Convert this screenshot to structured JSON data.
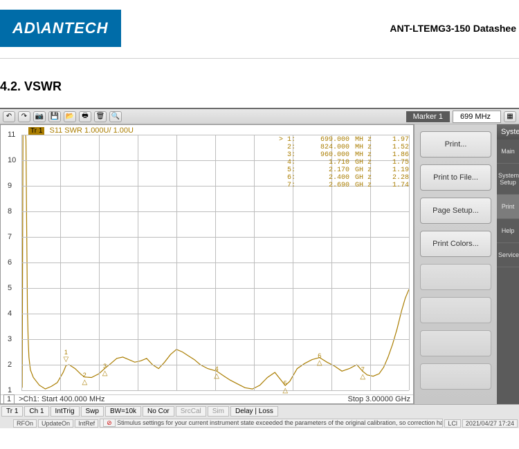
{
  "logo_text": "AD\\ANTECH",
  "doc_title": "ANT-LTEMG3-150  Datashee",
  "section_label": "4.2. VSWR",
  "toolbar": {
    "marker_label": "Marker 1",
    "marker_value": "699 MHz"
  },
  "chart": {
    "type": "line",
    "trace_badge": "Tr 1",
    "trace_label": "S11 SWR 1.000U/  1.00U",
    "trace_color": "#aa7d00",
    "grid_color": "#bdbdbd",
    "background_color": "#ffffff",
    "x_start_label": ">Ch1: Start  400.000 MHz",
    "x_stop_label": "Stop  3.00000 GHz",
    "ch_badge": "1",
    "x_min": 400,
    "x_max": 3000,
    "x_divs": 10,
    "y_min": 1,
    "y_max": 11,
    "y_ticks": [
      1,
      2,
      3,
      4,
      5,
      6,
      7,
      8,
      9,
      10,
      11
    ],
    "line_width": 1.2,
    "series": [
      [
        400,
        11
      ],
      [
        405,
        1.1
      ],
      [
        410,
        11
      ],
      [
        412,
        11
      ],
      [
        415,
        11
      ],
      [
        420,
        11
      ],
      [
        425,
        11
      ],
      [
        428,
        11
      ],
      [
        430,
        10.8
      ],
      [
        432,
        9.5
      ],
      [
        435,
        7.5
      ],
      [
        438,
        5.5
      ],
      [
        440,
        4.2
      ],
      [
        445,
        3.0
      ],
      [
        450,
        2.3
      ],
      [
        460,
        1.8
      ],
      [
        480,
        1.5
      ],
      [
        520,
        1.2
      ],
      [
        560,
        1.05
      ],
      [
        600,
        1.15
      ],
      [
        640,
        1.3
      ],
      [
        680,
        1.7
      ],
      [
        699,
        1.97
      ],
      [
        720,
        2.0
      ],
      [
        760,
        1.85
      ],
      [
        800,
        1.62
      ],
      [
        824,
        1.52
      ],
      [
        870,
        1.5
      ],
      [
        920,
        1.65
      ],
      [
        960,
        1.86
      ],
      [
        1000,
        2.05
      ],
      [
        1040,
        2.25
      ],
      [
        1080,
        2.3
      ],
      [
        1120,
        2.2
      ],
      [
        1160,
        2.1
      ],
      [
        1200,
        2.15
      ],
      [
        1240,
        2.25
      ],
      [
        1280,
        2.0
      ],
      [
        1320,
        1.85
      ],
      [
        1360,
        2.1
      ],
      [
        1400,
        2.4
      ],
      [
        1440,
        2.6
      ],
      [
        1480,
        2.5
      ],
      [
        1520,
        2.35
      ],
      [
        1560,
        2.2
      ],
      [
        1600,
        2.0
      ],
      [
        1650,
        1.85
      ],
      [
        1710,
        1.75
      ],
      [
        1760,
        1.55
      ],
      [
        1800,
        1.4
      ],
      [
        1850,
        1.25
      ],
      [
        1900,
        1.1
      ],
      [
        1950,
        1.05
      ],
      [
        2000,
        1.2
      ],
      [
        2050,
        1.5
      ],
      [
        2100,
        1.7
      ],
      [
        2170,
        1.19
      ],
      [
        2200,
        1.35
      ],
      [
        2250,
        1.85
      ],
      [
        2300,
        2.05
      ],
      [
        2350,
        2.2
      ],
      [
        2400,
        2.28
      ],
      [
        2450,
        2.1
      ],
      [
        2500,
        1.95
      ],
      [
        2550,
        1.75
      ],
      [
        2600,
        1.85
      ],
      [
        2650,
        2.0
      ],
      [
        2690,
        1.74
      ],
      [
        2720,
        1.6
      ],
      [
        2760,
        1.55
      ],
      [
        2800,
        1.65
      ],
      [
        2830,
        1.9
      ],
      [
        2860,
        2.3
      ],
      [
        2890,
        2.8
      ],
      [
        2920,
        3.4
      ],
      [
        2950,
        4.1
      ],
      [
        2975,
        4.6
      ],
      [
        3000,
        4.95
      ]
    ],
    "markers": [
      {
        "idx": "> 1:",
        "freq": "699.000",
        "unit": "MH z",
        "val": "1.97",
        "x": 699,
        "y": 1.97,
        "label": "1",
        "dir": "down"
      },
      {
        "idx": "2:",
        "freq": "824.000",
        "unit": "MH z",
        "val": "1.52",
        "x": 824,
        "y": 1.52,
        "label": "2",
        "dir": "up"
      },
      {
        "idx": "3:",
        "freq": "960.000",
        "unit": "MH z",
        "val": "1.86",
        "x": 960,
        "y": 1.86,
        "label": "3",
        "dir": "up"
      },
      {
        "idx": "4:",
        "freq": "1.710",
        "unit": "GH z",
        "val": "1.75",
        "x": 1710,
        "y": 1.75,
        "label": "4",
        "dir": "up"
      },
      {
        "idx": "5:",
        "freq": "2.170",
        "unit": "GH z",
        "val": "1.19",
        "x": 2170,
        "y": 1.19,
        "label": "5",
        "dir": "up"
      },
      {
        "idx": "6:",
        "freq": "2.400",
        "unit": "GH z",
        "val": "2.28",
        "x": 2400,
        "y": 2.28,
        "label": "6",
        "dir": "up"
      },
      {
        "idx": "7:",
        "freq": "2.690",
        "unit": "GH z",
        "val": "1.74",
        "x": 2690,
        "y": 1.74,
        "label": "7",
        "dir": "up"
      }
    ]
  },
  "side_panel": {
    "buttons": [
      "Print...",
      "Print to File...",
      "Page Setup...",
      "Print Colors..."
    ]
  },
  "right_strip": {
    "title": "System",
    "items": [
      "Main",
      "System Setup",
      "Print",
      "Help",
      "Service"
    ],
    "active": "Print"
  },
  "bottom_row1": [
    "Tr 1",
    "Ch 1",
    "IntTrig",
    "Swp",
    "BW=10k",
    "No Cor",
    "SrcCal",
    "Sim",
    "Delay | Loss"
  ],
  "bottom_row2": {
    "items": [
      "RFOn",
      "UpdateOn",
      "IntRef"
    ],
    "warn_text": "Stimulus settings for your current instrument state exceeded the parameters of the original calibration, so correction has been turn",
    "right1": "LCl",
    "right2": "2021/04/27 17:24"
  }
}
